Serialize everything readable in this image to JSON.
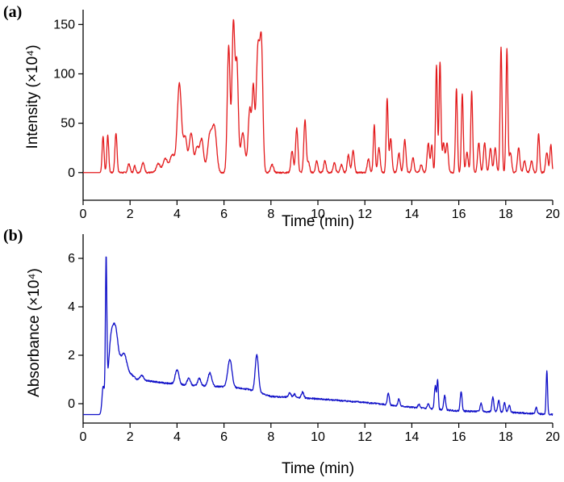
{
  "chart_data": [
    {
      "type": "line",
      "panel_label": "(a)",
      "xlabel": "Time (min)",
      "ylabel": "Intensity (×10⁴)",
      "xlim": [
        0,
        20
      ],
      "ylim": [
        -28,
        165
      ],
      "x_ticks": [
        0,
        2,
        4,
        6,
        8,
        10,
        12,
        14,
        16,
        18,
        20
      ],
      "y_ticks": [
        0,
        50,
        100,
        150
      ],
      "x_tick_labels": [
        "0",
        "2",
        "4",
        "6",
        "8",
        "10",
        "12",
        "14",
        "16",
        "18",
        "20"
      ],
      "y_tick_labels": [
        "0",
        "50",
        "100",
        "150"
      ],
      "color": "#e31a1c",
      "baseline": 0,
      "peaks": [
        [
          0.85,
          37,
          0.04
        ],
        [
          1.05,
          38,
          0.04
        ],
        [
          1.4,
          40,
          0.045
        ],
        [
          1.95,
          9,
          0.05
        ],
        [
          2.2,
          7,
          0.04
        ],
        [
          2.55,
          10,
          0.06
        ],
        [
          3.2,
          9,
          0.08
        ],
        [
          3.5,
          14,
          0.1
        ],
        [
          3.8,
          18,
          0.1
        ],
        [
          4.1,
          90,
          0.09
        ],
        [
          4.35,
          35,
          0.08
        ],
        [
          4.6,
          40,
          0.08
        ],
        [
          4.85,
          25,
          0.08
        ],
        [
          5.05,
          33,
          0.08
        ],
        [
          5.4,
          38,
          0.1
        ],
        [
          5.6,
          42,
          0.09
        ],
        [
          6.2,
          128,
          0.06
        ],
        [
          6.4,
          150,
          0.06
        ],
        [
          6.55,
          108,
          0.06
        ],
        [
          6.8,
          40,
          0.09
        ],
        [
          7.1,
          65,
          0.07
        ],
        [
          7.25,
          78,
          0.05
        ],
        [
          7.45,
          128,
          0.08
        ],
        [
          7.6,
          115,
          0.06
        ],
        [
          8.05,
          8,
          0.06
        ],
        [
          8.9,
          22,
          0.05
        ],
        [
          9.1,
          45,
          0.05
        ],
        [
          9.45,
          53,
          0.05
        ],
        [
          9.6,
          10,
          0.05
        ],
        [
          9.95,
          12,
          0.05
        ],
        [
          10.3,
          12,
          0.05
        ],
        [
          10.7,
          10,
          0.05
        ],
        [
          11.0,
          8,
          0.05
        ],
        [
          11.3,
          18,
          0.05
        ],
        [
          11.5,
          22,
          0.05
        ],
        [
          12.15,
          14,
          0.05
        ],
        [
          12.4,
          48,
          0.04
        ],
        [
          12.6,
          25,
          0.05
        ],
        [
          12.95,
          75,
          0.04
        ],
        [
          13.1,
          35,
          0.05
        ],
        [
          13.45,
          20,
          0.05
        ],
        [
          13.7,
          33,
          0.05
        ],
        [
          14.05,
          15,
          0.05
        ],
        [
          14.4,
          8,
          0.05
        ],
        [
          14.7,
          30,
          0.05
        ],
        [
          14.85,
          28,
          0.04
        ],
        [
          15.05,
          108,
          0.04
        ],
        [
          15.2,
          112,
          0.04
        ],
        [
          15.35,
          30,
          0.05
        ],
        [
          15.5,
          30,
          0.05
        ],
        [
          15.9,
          85,
          0.04
        ],
        [
          16.15,
          80,
          0.04
        ],
        [
          16.35,
          20,
          0.05
        ],
        [
          16.55,
          82,
          0.04
        ],
        [
          16.85,
          30,
          0.05
        ],
        [
          17.1,
          30,
          0.05
        ],
        [
          17.35,
          25,
          0.05
        ],
        [
          17.55,
          25,
          0.05
        ],
        [
          17.8,
          127,
          0.04
        ],
        [
          18.05,
          125,
          0.04
        ],
        [
          18.2,
          20,
          0.05
        ],
        [
          18.55,
          25,
          0.05
        ],
        [
          18.8,
          12,
          0.05
        ],
        [
          19.1,
          12,
          0.05
        ],
        [
          19.4,
          40,
          0.04
        ],
        [
          19.75,
          20,
          0.05
        ],
        [
          19.92,
          28,
          0.04
        ]
      ]
    },
    {
      "type": "line",
      "panel_label": "(b)",
      "xlabel": "Time (min)",
      "ylabel": "Absorbance (×10⁴)",
      "xlim": [
        0,
        20
      ],
      "ylim": [
        -0.8,
        7.0
      ],
      "x_ticks": [
        0,
        2,
        4,
        6,
        8,
        10,
        12,
        14,
        16,
        18,
        20
      ],
      "y_ticks": [
        0,
        2,
        4,
        6
      ],
      "x_tick_labels": [
        "0",
        "2",
        "4",
        "6",
        "8",
        "10",
        "12",
        "14",
        "16",
        "18",
        "20"
      ],
      "y_tick_labels": [
        "0",
        "2",
        "4",
        "6"
      ],
      "color": "#1010c8",
      "baseline_points": [
        [
          0,
          -0.45
        ],
        [
          0.8,
          -0.45
        ],
        [
          1.6,
          1.6
        ],
        [
          2.3,
          1.0
        ],
        [
          3.5,
          0.85
        ],
        [
          4.5,
          0.75
        ],
        [
          6.0,
          0.7
        ],
        [
          7.0,
          0.6
        ],
        [
          8.0,
          0.3
        ],
        [
          10.0,
          0.2
        ],
        [
          12.0,
          0.05
        ],
        [
          14.0,
          -0.15
        ],
        [
          16.0,
          -0.3
        ],
        [
          18.0,
          -0.35
        ],
        [
          20.0,
          -0.45
        ]
      ],
      "peaks": [
        [
          0.85,
          1.0,
          0.05
        ],
        [
          0.98,
          5.7,
          0.03
        ],
        [
          1.2,
          2.2,
          0.12
        ],
        [
          1.4,
          1.5,
          0.1
        ],
        [
          1.75,
          0.6,
          0.1
        ],
        [
          2.5,
          0.2,
          0.08
        ],
        [
          4.0,
          0.6,
          0.08
        ],
        [
          4.5,
          0.3,
          0.07
        ],
        [
          4.95,
          0.3,
          0.07
        ],
        [
          5.4,
          0.55,
          0.08
        ],
        [
          6.25,
          1.15,
          0.09
        ],
        [
          7.4,
          1.55,
          0.07
        ],
        [
          8.8,
          0.2,
          0.05
        ],
        [
          9.0,
          0.15,
          0.05
        ],
        [
          9.35,
          0.25,
          0.05
        ],
        [
          13.0,
          0.5,
          0.04
        ],
        [
          13.45,
          0.3,
          0.04
        ],
        [
          14.3,
          0.15,
          0.04
        ],
        [
          14.7,
          0.2,
          0.04
        ],
        [
          15.0,
          0.95,
          0.04
        ],
        [
          15.1,
          1.2,
          0.03
        ],
        [
          15.4,
          0.6,
          0.04
        ],
        [
          16.1,
          0.8,
          0.04
        ],
        [
          16.95,
          0.35,
          0.04
        ],
        [
          17.45,
          0.6,
          0.04
        ],
        [
          17.7,
          0.5,
          0.04
        ],
        [
          17.95,
          0.4,
          0.04
        ],
        [
          18.15,
          0.3,
          0.04
        ],
        [
          19.3,
          0.25,
          0.04
        ],
        [
          19.75,
          1.8,
          0.03
        ]
      ]
    }
  ]
}
